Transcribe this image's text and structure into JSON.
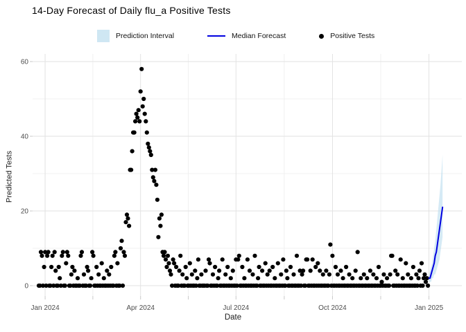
{
  "title": "14-Day Forecast of Daily flu_a Positive Tests",
  "legend": {
    "items": [
      {
        "key": "prediction-interval",
        "label": "Prediction Interval",
        "swatch_color": "#cfe7f3"
      },
      {
        "key": "median-forecast",
        "label": "Median Forecast",
        "line_color": "#0000e0"
      },
      {
        "key": "positive-tests",
        "label": "Positive Tests",
        "dot_color": "#000000"
      }
    ]
  },
  "colors": {
    "band_fill": "#b9dcee",
    "median_line": "#0000e0",
    "point": "#000000",
    "grid_major": "#e2e2e2",
    "grid_minor": "#f0f0f0",
    "tick_mark": "#c9c9c9",
    "tick_label": "#4d4d4d",
    "background": "#ffffff"
  },
  "chart_data": {
    "type": "scatter",
    "title": "14-Day Forecast of Daily flu_a Positive Tests",
    "xlabel": "Date",
    "ylabel": "Predicted Tests",
    "ylim": [
      0,
      62
    ],
    "grid": "on",
    "legend_position": "top",
    "x_start_date": "2023-12-26",
    "x_ticks": [
      {
        "t": 6,
        "label": "Jan 2024"
      },
      {
        "t": 97,
        "label": "Apr 2024"
      },
      {
        "t": 188,
        "label": "Jul 2024"
      },
      {
        "t": 280,
        "label": "Oct 2024"
      },
      {
        "t": 372,
        "label": "Jan 2025"
      }
    ],
    "x_minor_ticks": [
      51.5,
      142.5,
      234,
      326
    ],
    "y_ticks": [
      0,
      20,
      40,
      60
    ],
    "y_minor_ticks": [
      10,
      30,
      50
    ],
    "observed": {
      "name": "Positive Tests",
      "daily_values": [
        0,
        0,
        9,
        8,
        0,
        5,
        9,
        0,
        8,
        9,
        0,
        0,
        5,
        8,
        0,
        9,
        4,
        0,
        0,
        5,
        2,
        0,
        8,
        9,
        0,
        0,
        6,
        9,
        8,
        0,
        0,
        3,
        5,
        0,
        4,
        0,
        0,
        2,
        0,
        0,
        8,
        9,
        0,
        3,
        0,
        0,
        5,
        4,
        0,
        0,
        2,
        9,
        8,
        0,
        0,
        5,
        0,
        3,
        0,
        0,
        6,
        0,
        2,
        0,
        0,
        4,
        0,
        3,
        0,
        5,
        0,
        0,
        8,
        9,
        0,
        6,
        0,
        0,
        10,
        12,
        0,
        9,
        8,
        17,
        19,
        18,
        16,
        31,
        31,
        36,
        41,
        41,
        44,
        46,
        45,
        47,
        44,
        52,
        58,
        48,
        50,
        46,
        44,
        41,
        38,
        37,
        36,
        35,
        31,
        29,
        28,
        31,
        27,
        23,
        13,
        18,
        16,
        19,
        9,
        8,
        9,
        7,
        5,
        8,
        6,
        4,
        3,
        0,
        7,
        6,
        0,
        5,
        0,
        0,
        4,
        8,
        0,
        3,
        0,
        0,
        5,
        2,
        0,
        0,
        6,
        0,
        3,
        0,
        0,
        4,
        0,
        2,
        7,
        0,
        0,
        3,
        0,
        0,
        0,
        4,
        0,
        0,
        7,
        6,
        0,
        0,
        3,
        0,
        5,
        0,
        0,
        2,
        4,
        0,
        0,
        7,
        0,
        0,
        3,
        0,
        5,
        0,
        0,
        2,
        0,
        4,
        0,
        0,
        7,
        0,
        7,
        8,
        0,
        0,
        5,
        0,
        2,
        0,
        0,
        7,
        0,
        4,
        0,
        0,
        3,
        0,
        8,
        0,
        0,
        2,
        5,
        0,
        0,
        4,
        0,
        0,
        6,
        0,
        3,
        0,
        4,
        0,
        0,
        5,
        0,
        2,
        0,
        0,
        6,
        0,
        0,
        3,
        0,
        7,
        0,
        0,
        4,
        2,
        0,
        0,
        5,
        0,
        0,
        3,
        0,
        0,
        8,
        0,
        0,
        4,
        0,
        3,
        4,
        0,
        0,
        7,
        7,
        0,
        0,
        4,
        0,
        7,
        0,
        0,
        5,
        0,
        6,
        0,
        4,
        0,
        0,
        3,
        0,
        0,
        4,
        0,
        0,
        3,
        11,
        0,
        8,
        0,
        0,
        5,
        0,
        3,
        0,
        0,
        4,
        0,
        2,
        0,
        0,
        5,
        0,
        0,
        3,
        0,
        0,
        2,
        0,
        0,
        4,
        0,
        9,
        0,
        0,
        2,
        0,
        0,
        3,
        0,
        0,
        2,
        0,
        0,
        4,
        0,
        0,
        3,
        0,
        0,
        2,
        0,
        5,
        0,
        0,
        1,
        0,
        3,
        0,
        0,
        2,
        0,
        0,
        3,
        8,
        8,
        0,
        0,
        4,
        0,
        3,
        0,
        0,
        7,
        0,
        2,
        0,
        0,
        6,
        0,
        3,
        0,
        0,
        2,
        0,
        5,
        0,
        0,
        3,
        0,
        2,
        4,
        0,
        6,
        0,
        2,
        3,
        1,
        2,
        0
      ]
    },
    "forecast": {
      "name": "14-Day Forecast",
      "start_index": 372,
      "median": [
        2,
        2,
        3,
        4,
        5,
        6,
        8,
        9,
        11,
        13,
        15,
        17,
        19,
        21
      ],
      "lower": [
        1,
        1,
        1,
        2,
        2,
        3,
        3,
        4,
        5,
        6,
        7,
        9,
        11,
        13
      ],
      "upper": [
        3,
        4,
        5,
        6,
        8,
        10,
        12,
        15,
        18,
        21,
        24,
        27,
        31,
        35
      ]
    }
  }
}
